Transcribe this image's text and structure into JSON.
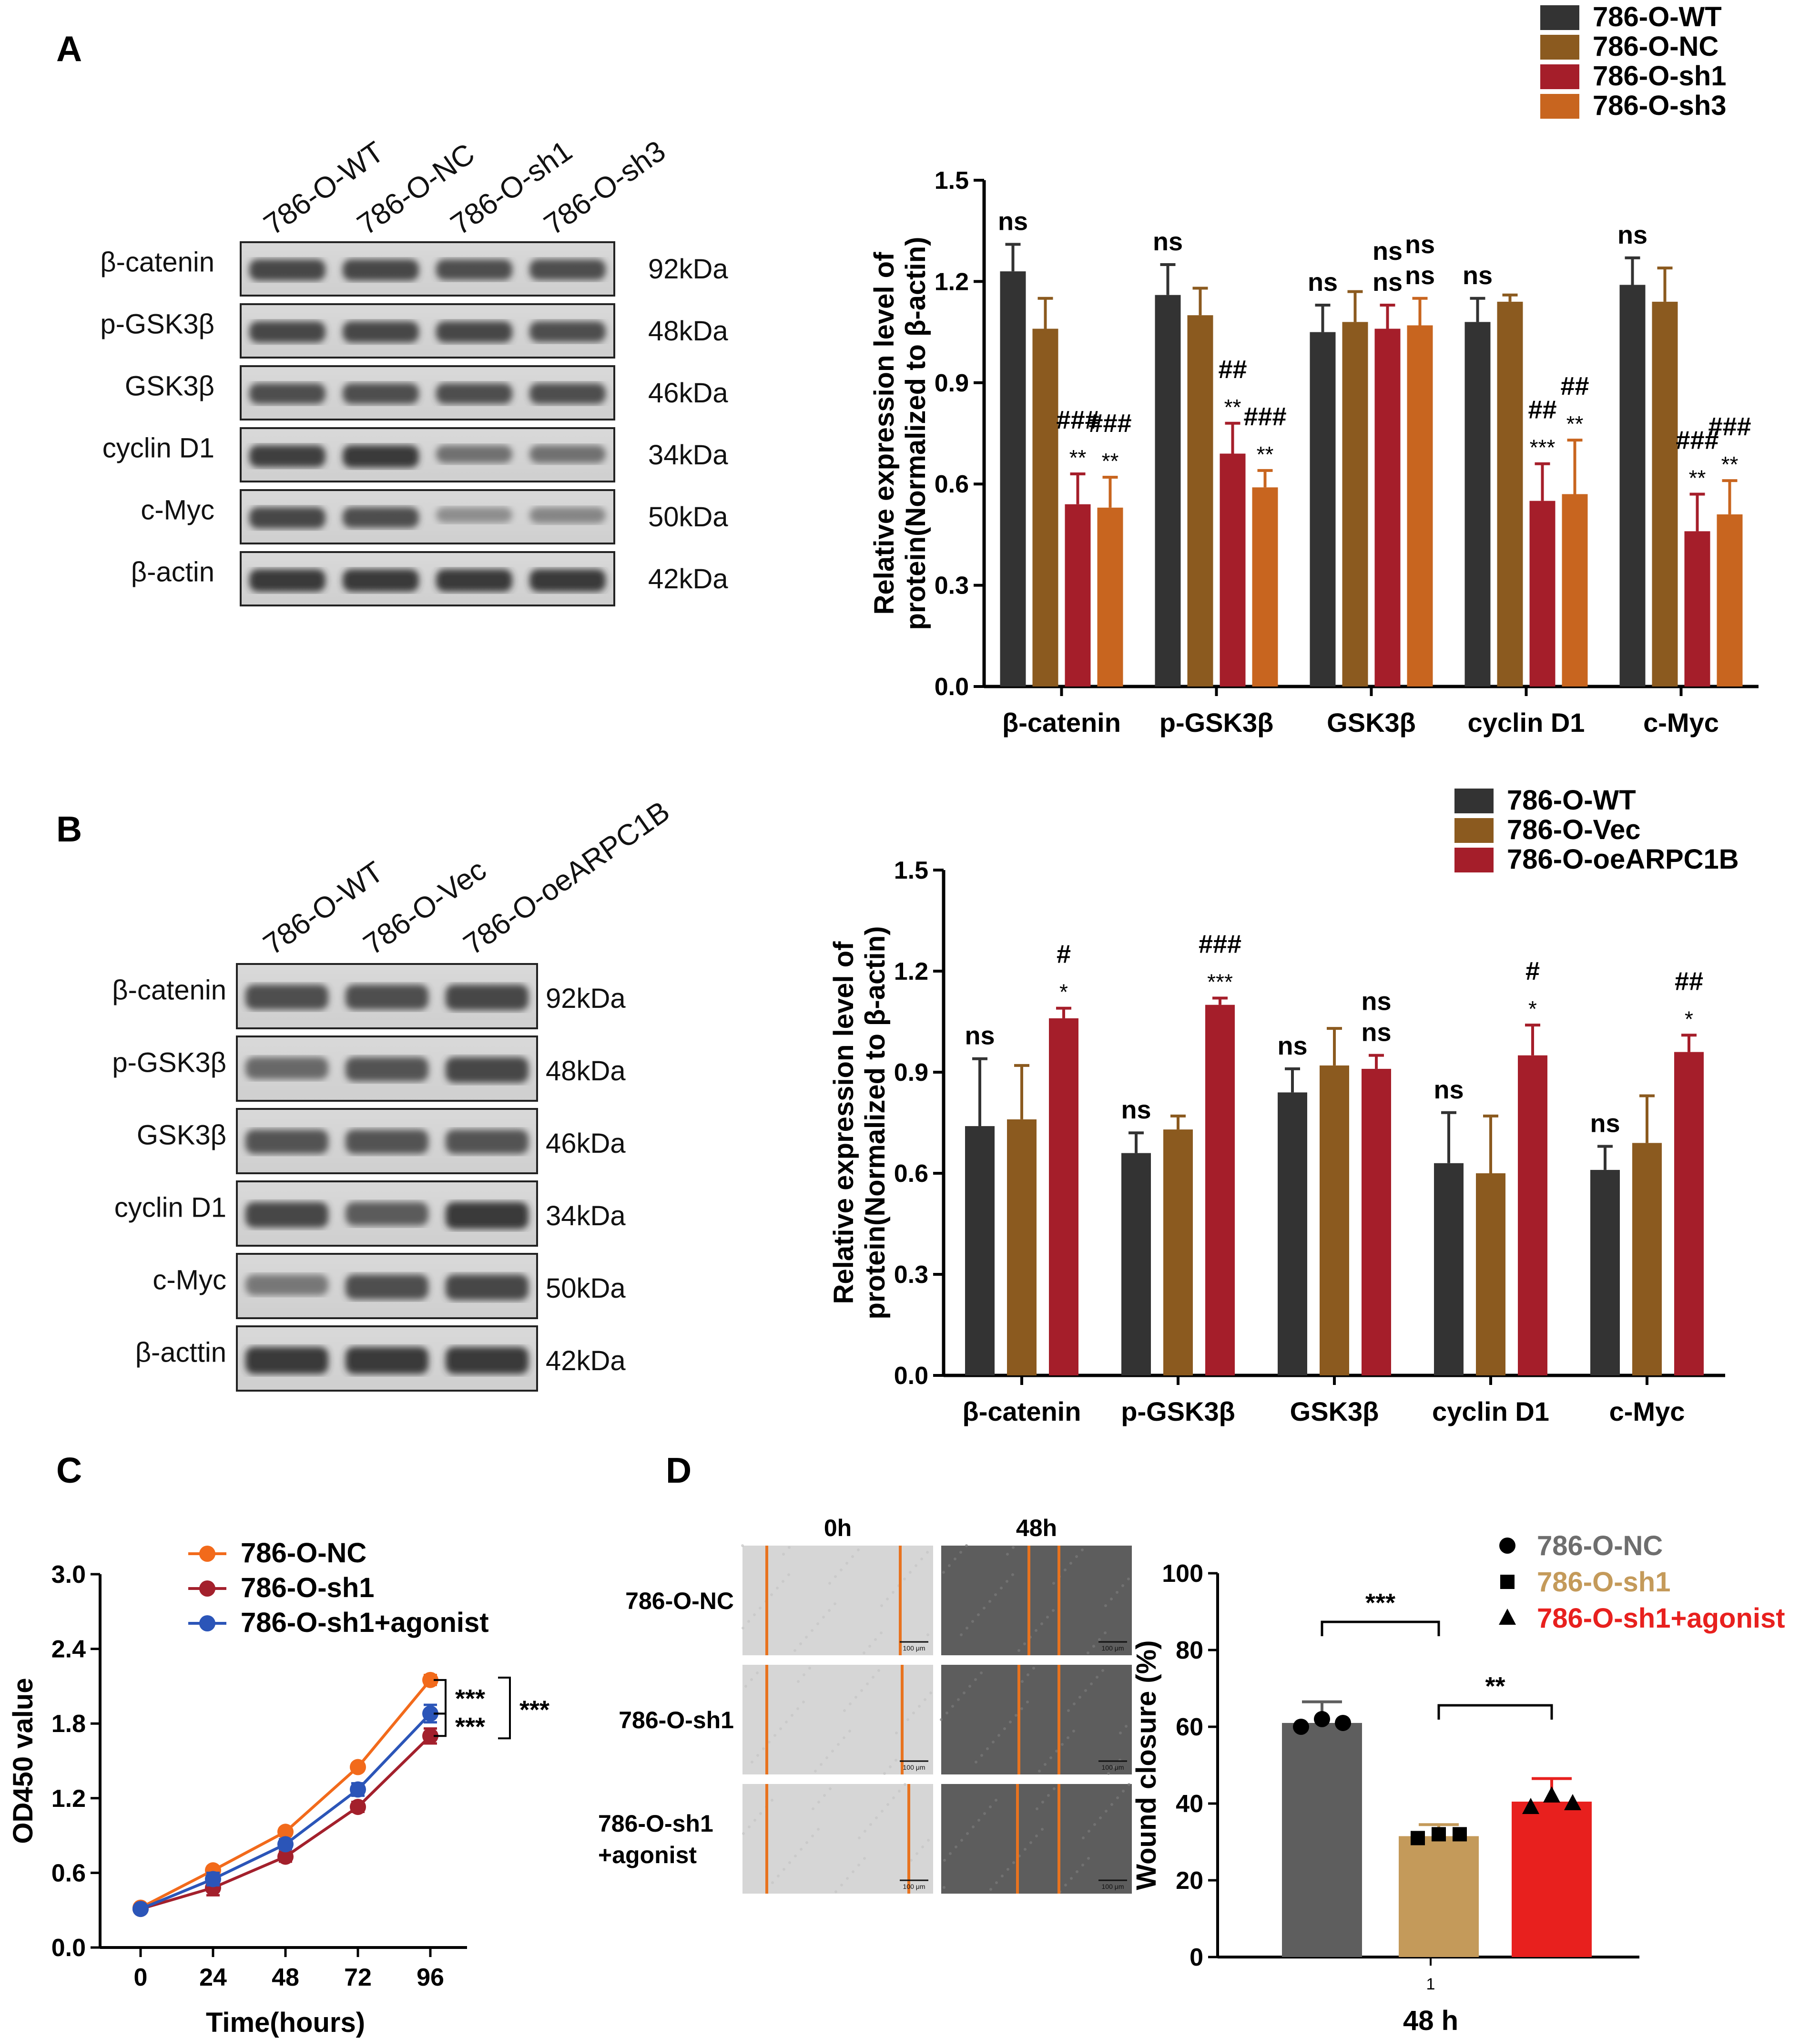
{
  "panels": {
    "A": {
      "letter": "A",
      "blot": {
        "lanes": [
          "786-O-WT",
          "786-O-NC",
          "786-O-sh1",
          "786-O-sh3"
        ],
        "rows": [
          {
            "protein": "β-catenin",
            "kda": "92kDa"
          },
          {
            "protein": "p-GSK3β",
            "kda": "48kDa"
          },
          {
            "protein": "GSK3β",
            "kda": "46kDa"
          },
          {
            "protein": "cyclin D1",
            "kda": "34kDa"
          },
          {
            "protein": "c-Myc",
            "kda": "50kDa"
          },
          {
            "protein": "β-actin",
            "kda": "42kDa"
          }
        ],
        "band_intensity": [
          [
            0.85,
            0.85,
            0.8,
            0.8
          ],
          [
            0.85,
            0.85,
            0.85,
            0.8
          ],
          [
            0.8,
            0.8,
            0.8,
            0.8
          ],
          [
            0.9,
            0.95,
            0.55,
            0.55
          ],
          [
            0.85,
            0.8,
            0.35,
            0.4
          ],
          [
            0.95,
            0.95,
            0.95,
            0.95
          ]
        ]
      }
    },
    "B": {
      "letter": "B",
      "blot": {
        "lanes": [
          "786-O-WT",
          "786-O-Vec",
          "786-O-oeARPC1B"
        ],
        "rows": [
          {
            "protein": "β-catenin",
            "kda": "92kDa"
          },
          {
            "protein": "p-GSK3β",
            "kda": "48kDa"
          },
          {
            "protein": "GSK3β",
            "kda": "46kDa"
          },
          {
            "protein": "cyclin D1",
            "kda": "34kDa"
          },
          {
            "protein": "c-Myc",
            "kda": "50kDa"
          },
          {
            "protein": "β-acttin",
            "kda": "42kDa"
          }
        ],
        "band_intensity": [
          [
            0.8,
            0.8,
            0.85
          ],
          [
            0.6,
            0.75,
            0.85
          ],
          [
            0.75,
            0.75,
            0.75
          ],
          [
            0.85,
            0.7,
            0.95
          ],
          [
            0.5,
            0.8,
            0.85
          ],
          [
            0.95,
            0.95,
            0.95
          ]
        ]
      }
    },
    "C": {
      "letter": "C"
    },
    "D": {
      "letter": "D"
    }
  },
  "wound": {
    "col_labels": [
      "0h",
      "48h"
    ],
    "row_labels": [
      [
        "786-O-NC"
      ],
      [
        "786-O-sh1"
      ],
      [
        "786-O-sh1",
        "+agonist"
      ]
    ],
    "scale_bar": "100 μm"
  },
  "colors": {
    "wt": "#333333",
    "nc": "#8B5A1F",
    "sh1": "#A51E2A",
    "sh3": "#C8651F",
    "line_nc": "#F26A1B",
    "line_sh1": "#A3202C",
    "line_agonist": "#2B55B8",
    "d_nc": "#5E5E5E",
    "d_sh1": "#C49A5A",
    "d_agonist": "#E8201E",
    "d_leg_nc": "#6E6E6E",
    "d_leg_sh1": "#C49A5A",
    "d_leg_agonist": "#E8201E"
  },
  "chart_data": [
    {
      "id": "A",
      "type": "bar",
      "ylabel": [
        "Relative expression level of",
        "protein(Normalized to β-actin)"
      ],
      "ylim": [
        0,
        1.5
      ],
      "yticks": [
        "0.0",
        "0.3",
        "0.6",
        "0.9",
        "1.2",
        "1.5"
      ],
      "categories": [
        "β-catenin",
        "p-GSK3β",
        "GSK3β",
        "cyclin D1",
        "c-Myc"
      ],
      "legend": [
        "786-O-WT",
        "786-O-NC",
        "786-O-sh1",
        "786-O-sh3"
      ],
      "series": [
        {
          "name": "786-O-WT",
          "values": [
            1.23,
            1.16,
            1.05,
            1.08,
            1.19
          ],
          "errors": [
            0.08,
            0.09,
            0.08,
            0.07,
            0.08
          ]
        },
        {
          "name": "786-O-NC",
          "values": [
            1.06,
            1.1,
            1.08,
            1.14,
            1.14
          ],
          "errors": [
            0.09,
            0.08,
            0.09,
            0.02,
            0.1
          ]
        },
        {
          "name": "786-O-sh1",
          "values": [
            0.54,
            0.69,
            1.06,
            0.55,
            0.46
          ],
          "errors": [
            0.09,
            0.09,
            0.07,
            0.11,
            0.11
          ]
        },
        {
          "name": "786-O-sh3",
          "values": [
            0.53,
            0.59,
            1.07,
            0.57,
            0.51
          ],
          "errors": [
            0.09,
            0.05,
            0.08,
            0.16,
            0.1
          ]
        }
      ],
      "annotations": [
        {
          "cat": 0,
          "series": 0,
          "lines": [
            "ns"
          ]
        },
        {
          "cat": 0,
          "series": 2,
          "lines": [
            "###",
            "**"
          ]
        },
        {
          "cat": 0,
          "series": 3,
          "lines": [
            "###",
            "**"
          ]
        },
        {
          "cat": 1,
          "series": 0,
          "lines": [
            "ns"
          ]
        },
        {
          "cat": 1,
          "series": 2,
          "lines": [
            "##",
            "**"
          ]
        },
        {
          "cat": 1,
          "series": 3,
          "lines": [
            "###",
            "**"
          ]
        },
        {
          "cat": 2,
          "series": 0,
          "lines": [
            "ns"
          ]
        },
        {
          "cat": 2,
          "series": 2,
          "lines": [
            "ns",
            "ns"
          ]
        },
        {
          "cat": 2,
          "series": 3,
          "lines": [
            "ns",
            "ns"
          ]
        },
        {
          "cat": 3,
          "series": 0,
          "lines": [
            "ns"
          ]
        },
        {
          "cat": 3,
          "series": 2,
          "lines": [
            "##",
            "***"
          ]
        },
        {
          "cat": 3,
          "series": 3,
          "lines": [
            "##",
            "**"
          ]
        },
        {
          "cat": 4,
          "series": 0,
          "lines": [
            "ns"
          ]
        },
        {
          "cat": 4,
          "series": 2,
          "lines": [
            "###",
            "**"
          ]
        },
        {
          "cat": 4,
          "series": 3,
          "lines": [
            "###",
            "**"
          ]
        }
      ]
    },
    {
      "id": "B",
      "type": "bar",
      "ylabel": [
        "Relative expression level of",
        "protein(Normalized to β-actin)"
      ],
      "ylim": [
        0,
        1.5
      ],
      "yticks": [
        "0.0",
        "0.3",
        "0.6",
        "0.9",
        "1.2",
        "1.5"
      ],
      "categories": [
        "β-catenin",
        "p-GSK3β",
        "GSK3β",
        "cyclin D1",
        "c-Myc"
      ],
      "legend": [
        "786-O-WT",
        "786-O-Vec",
        "786-O-oeARPC1B"
      ],
      "series": [
        {
          "name": "786-O-WT",
          "values": [
            0.74,
            0.66,
            0.84,
            0.63,
            0.61
          ],
          "errors": [
            0.2,
            0.06,
            0.07,
            0.15,
            0.07
          ]
        },
        {
          "name": "786-O-Vec",
          "values": [
            0.76,
            0.73,
            0.92,
            0.6,
            0.69
          ],
          "errors": [
            0.16,
            0.04,
            0.11,
            0.17,
            0.14
          ]
        },
        {
          "name": "786-O-oeARPC1B",
          "values": [
            1.06,
            1.1,
            0.91,
            0.95,
            0.96
          ],
          "errors": [
            0.03,
            0.02,
            0.04,
            0.09,
            0.05
          ]
        }
      ],
      "annotations": [
        {
          "cat": 0,
          "series": 0,
          "lines": [
            "ns"
          ]
        },
        {
          "cat": 0,
          "series": 2,
          "lines": [
            "#",
            "*"
          ]
        },
        {
          "cat": 1,
          "series": 0,
          "lines": [
            "ns"
          ]
        },
        {
          "cat": 1,
          "series": 2,
          "lines": [
            "###",
            "***"
          ]
        },
        {
          "cat": 2,
          "series": 0,
          "lines": [
            "ns"
          ]
        },
        {
          "cat": 2,
          "series": 2,
          "lines": [
            "ns",
            "ns"
          ]
        },
        {
          "cat": 3,
          "series": 0,
          "lines": [
            "ns"
          ]
        },
        {
          "cat": 3,
          "series": 2,
          "lines": [
            "#",
            "*"
          ]
        },
        {
          "cat": 4,
          "series": 0,
          "lines": [
            "ns"
          ]
        },
        {
          "cat": 4,
          "series": 2,
          "lines": [
            "##",
            "*"
          ]
        }
      ]
    },
    {
      "id": "C",
      "type": "line",
      "xlabel": "Time(hours)",
      "ylabel": "OD450 value",
      "x": [
        0,
        24,
        48,
        72,
        96
      ],
      "xticks": [
        "0",
        "24",
        "48",
        "72",
        "96"
      ],
      "ylim": [
        0,
        3.0
      ],
      "yticks": [
        "0.0",
        "0.6",
        "1.2",
        "1.8",
        "2.4",
        "3.0"
      ],
      "series": [
        {
          "name": "786-O-NC",
          "values": [
            0.32,
            0.62,
            0.93,
            1.45,
            2.15
          ],
          "errors": [
            0.02,
            0.03,
            0.03,
            0.03,
            0.04
          ]
        },
        {
          "name": "786-O-sh1",
          "values": [
            0.31,
            0.48,
            0.73,
            1.13,
            1.7
          ],
          "errors": [
            0.02,
            0.06,
            0.04,
            0.04,
            0.06
          ]
        },
        {
          "name": "786-O-sh1+agonist",
          "values": [
            0.31,
            0.55,
            0.83,
            1.27,
            1.88
          ],
          "errors": [
            0.02,
            0.05,
            0.04,
            0.05,
            0.07
          ]
        }
      ],
      "significance": [
        "***",
        "***",
        "***"
      ]
    },
    {
      "id": "D",
      "type": "bar",
      "xlabel": "48 h",
      "xtick": "1",
      "ylabel": "Wound closure (%)",
      "ylim": [
        0,
        100
      ],
      "yticks": [
        "0",
        "20",
        "40",
        "60",
        "80",
        "100"
      ],
      "categories": [
        "786-O-NC",
        "786-O-sh1",
        "786-O-sh1+agonist"
      ],
      "values": [
        61,
        31.5,
        40.5
      ],
      "errors": [
        5.5,
        3.0,
        6.0
      ],
      "points": [
        [
          60,
          62,
          61
        ],
        [
          31,
          32,
          32
        ],
        [
          39,
          42,
          40
        ]
      ],
      "significance": [
        "***",
        "**"
      ]
    }
  ]
}
